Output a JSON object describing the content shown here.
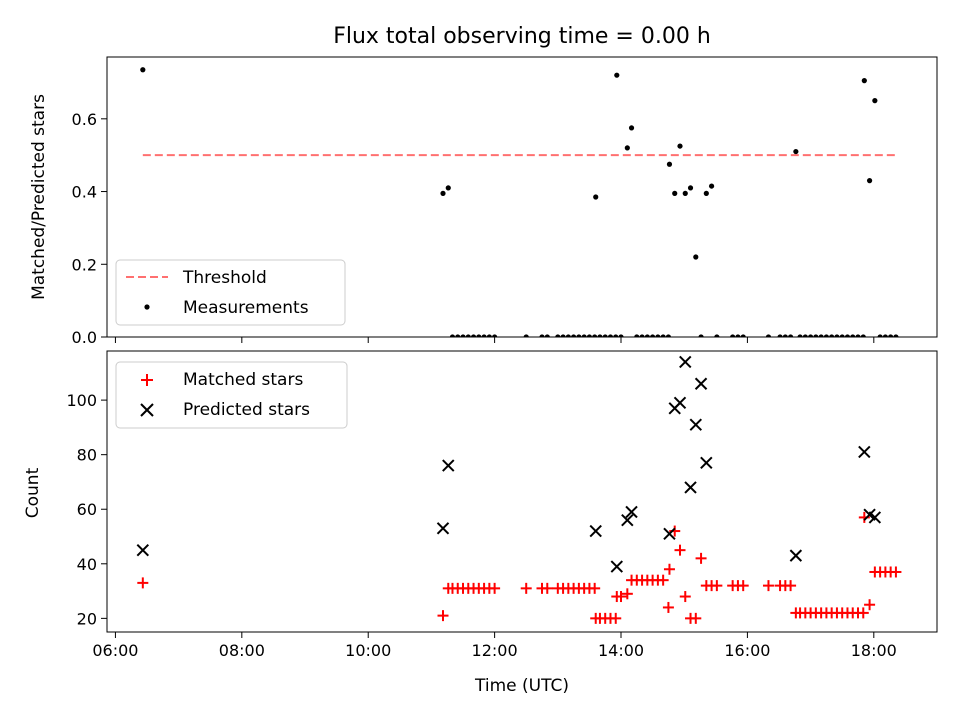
{
  "chart_data": [
    {
      "type": "scatter",
      "title": "Flux total observing time = 0.00 h",
      "xlabel": "",
      "ylabel": "Matched/Predicted stars",
      "xlim": [
        "05:52",
        "19:00"
      ],
      "ylim": [
        0,
        0.77
      ],
      "yticks": [
        0.0,
        0.2,
        0.4,
        0.6
      ],
      "ytick_labels": [
        "0.0",
        "0.2",
        "0.4",
        "0.6"
      ],
      "legend": {
        "loc": "lower left",
        "entries": [
          "Threshold",
          "Measurements"
        ]
      },
      "series": [
        {
          "name": "Threshold",
          "kind": "dashed-line",
          "color": "#ff7070",
          "x": [
            "06:26",
            "18:22"
          ],
          "y": [
            0.5,
            0.5
          ]
        },
        {
          "name": "Measurements",
          "kind": "points",
          "color": "#000000",
          "x": [
            "06:26",
            "11:11",
            "11:16",
            "11:20",
            "11:25",
            "11:30",
            "11:35",
            "11:40",
            "11:45",
            "11:50",
            "11:55",
            "12:00",
            "12:30",
            "12:45",
            "12:50",
            "13:00",
            "13:05",
            "13:10",
            "13:15",
            "13:20",
            "13:25",
            "13:30",
            "13:35",
            "13:36",
            "13:40",
            "13:45",
            "13:50",
            "13:55",
            "13:56",
            "14:00",
            "14:06",
            "14:10",
            "14:15",
            "14:20",
            "14:25",
            "14:30",
            "14:35",
            "14:40",
            "14:45",
            "14:46",
            "14:51",
            "14:56",
            "15:01",
            "15:06",
            "15:11",
            "15:16",
            "15:21",
            "15:26",
            "15:31",
            "15:46",
            "15:51",
            "15:56",
            "16:20",
            "16:31",
            "16:36",
            "16:41",
            "16:46",
            "16:50",
            "16:55",
            "17:00",
            "17:05",
            "17:10",
            "17:15",
            "17:20",
            "17:25",
            "17:30",
            "17:35",
            "17:40",
            "17:45",
            "17:50",
            "17:51",
            "17:56",
            "18:01",
            "18:06",
            "18:11",
            "18:16",
            "18:21"
          ],
          "y": [
            0.735,
            0.395,
            0.41,
            0,
            0,
            0,
            0,
            0,
            0,
            0,
            0,
            0,
            0,
            0,
            0,
            0,
            0,
            0,
            0,
            0,
            0,
            0,
            0,
            0.385,
            0,
            0,
            0,
            0,
            0.72,
            0,
            0.52,
            0.575,
            0,
            0,
            0,
            0,
            0,
            0,
            0,
            0.475,
            0.395,
            0.525,
            0.395,
            0.41,
            0.22,
            0,
            0.395,
            0.415,
            0,
            0,
            0,
            0,
            0,
            0,
            0,
            0,
            0.51,
            0,
            0,
            0,
            0,
            0,
            0,
            0,
            0,
            0,
            0,
            0,
            0,
            0,
            0.705,
            0.43,
            0.65,
            0,
            0,
            0,
            0
          ]
        }
      ]
    },
    {
      "type": "scatter",
      "title": "",
      "xlabel": "Time (UTC)",
      "ylabel": "Count",
      "xlim": [
        "05:52",
        "19:00"
      ],
      "ylim": [
        15,
        118
      ],
      "xticks": [
        "06:00",
        "08:00",
        "10:00",
        "12:00",
        "14:00",
        "16:00",
        "18:00"
      ],
      "yticks": [
        20,
        40,
        60,
        80,
        100
      ],
      "ytick_labels": [
        "20",
        "40",
        "60",
        "80",
        "100"
      ],
      "legend": {
        "loc": "upper left",
        "entries": [
          "Matched stars",
          "Predicted stars"
        ]
      },
      "series": [
        {
          "name": "Matched stars",
          "kind": "plus",
          "color": "#ff0000",
          "x": [
            "06:26",
            "11:11",
            "11:16",
            "11:20",
            "11:25",
            "11:30",
            "11:35",
            "11:40",
            "11:45",
            "11:50",
            "11:55",
            "12:00",
            "12:30",
            "12:45",
            "12:50",
            "13:00",
            "13:05",
            "13:10",
            "13:15",
            "13:20",
            "13:25",
            "13:30",
            "13:35",
            "13:36",
            "13:40",
            "13:45",
            "13:50",
            "13:55",
            "13:56",
            "14:00",
            "14:06",
            "14:10",
            "14:15",
            "14:20",
            "14:25",
            "14:30",
            "14:35",
            "14:40",
            "14:45",
            "14:46",
            "14:51",
            "14:56",
            "15:01",
            "15:06",
            "15:11",
            "15:16",
            "15:21",
            "15:26",
            "15:31",
            "15:46",
            "15:51",
            "15:56",
            "16:20",
            "16:31",
            "16:36",
            "16:41",
            "16:46",
            "16:50",
            "16:55",
            "17:00",
            "17:05",
            "17:10",
            "17:15",
            "17:20",
            "17:25",
            "17:30",
            "17:35",
            "17:40",
            "17:45",
            "17:50",
            "17:51",
            "17:56",
            "18:01",
            "18:06",
            "18:11",
            "18:16",
            "18:21"
          ],
          "y": [
            33,
            21,
            31,
            31,
            31,
            31,
            31,
            31,
            31,
            31,
            31,
            31,
            31,
            31,
            31,
            31,
            31,
            31,
            31,
            31,
            31,
            31,
            31,
            20,
            20,
            20,
            20,
            20,
            28,
            28,
            29,
            34,
            34,
            34,
            34,
            34,
            34,
            34,
            24,
            38,
            52,
            45,
            28,
            20,
            20,
            42,
            32,
            32,
            32,
            32,
            32,
            32,
            32,
            32,
            32,
            32,
            22,
            22,
            22,
            22,
            22,
            22,
            22,
            22,
            22,
            22,
            22,
            22,
            22,
            22,
            57,
            25,
            37,
            37,
            37,
            37,
            37
          ]
        },
        {
          "name": "Predicted stars",
          "kind": "cross",
          "color": "#000000",
          "x": [
            "06:26",
            "11:11",
            "11:16",
            "13:36",
            "13:56",
            "14:06",
            "14:10",
            "14:46",
            "14:51",
            "14:56",
            "15:01",
            "15:06",
            "15:11",
            "15:16",
            "15:21",
            "16:46",
            "17:51",
            "17:56",
            "18:01"
          ],
          "y": [
            45,
            53,
            76,
            52,
            39,
            56,
            59,
            51,
            97,
            99,
            114,
            68,
            91,
            106,
            77,
            43,
            81,
            58,
            57
          ]
        }
      ]
    }
  ]
}
